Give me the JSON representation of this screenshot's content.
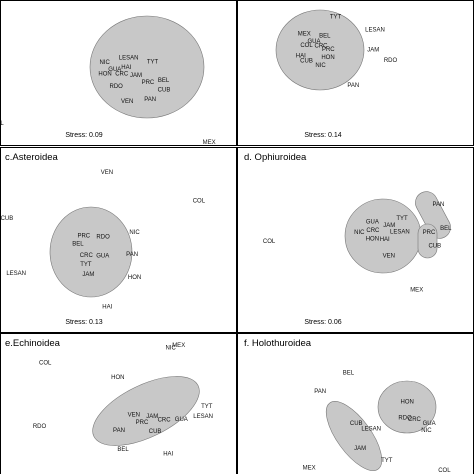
{
  "colors": {
    "group_fill": "#c8c8c8",
    "group_stroke": "#777777",
    "frame": "#000000",
    "text": "#111111"
  },
  "chart_data": [
    {
      "type": "scatter",
      "title": "",
      "stress_label": "Stress: 0.09",
      "points": [
        {
          "label": "NIC",
          "x": -0.42,
          "y": 0.82
        },
        {
          "label": "LESAN",
          "x": 0.1,
          "y": 0.91
        },
        {
          "label": "TYT",
          "x": 0.62,
          "y": 0.83
        },
        {
          "label": "HAI",
          "x": 0.05,
          "y": 0.71
        },
        {
          "label": "GUA",
          "x": -0.2,
          "y": 0.66
        },
        {
          "label": "HON",
          "x": -0.41,
          "y": 0.57
        },
        {
          "label": "CRC",
          "x": -0.05,
          "y": 0.57
        },
        {
          "label": "JAM",
          "x": 0.26,
          "y": 0.53
        },
        {
          "label": "PRC",
          "x": 0.52,
          "y": 0.38
        },
        {
          "label": "BEL",
          "x": 0.86,
          "y": 0.43
        },
        {
          "label": "RDO",
          "x": -0.17,
          "y": 0.3
        },
        {
          "label": "CUB",
          "x": 0.87,
          "y": 0.22
        },
        {
          "label": "PAN",
          "x": 0.57,
          "y": 0.01
        },
        {
          "label": "VEN",
          "x": 0.07,
          "y": -0.03
        },
        {
          "label": "COL",
          "x": -2.75,
          "y": -0.51
        },
        {
          "label": "MEX",
          "x": 1.85,
          "y": -0.92
        }
      ]
    },
    {
      "type": "scatter",
      "title": "",
      "stress_label": "Stress: 0.14",
      "points": [
        {
          "label": "TYT",
          "x": 0.78,
          "y": 1.72
        },
        {
          "label": "LESAN",
          "x": 2.36,
          "y": 1.2
        },
        {
          "label": "MEX",
          "x": -0.47,
          "y": 1.05
        },
        {
          "label": "BEL",
          "x": 0.35,
          "y": 0.97
        },
        {
          "label": "GUA",
          "x": -0.08,
          "y": 0.74
        },
        {
          "label": "COL",
          "x": -0.38,
          "y": 0.58
        },
        {
          "label": "CRC",
          "x": 0.2,
          "y": 0.56
        },
        {
          "label": "PRC",
          "x": 0.49,
          "y": 0.43
        },
        {
          "label": "JAM",
          "x": 2.29,
          "y": 0.41
        },
        {
          "label": "HAI",
          "x": -0.61,
          "y": 0.16
        },
        {
          "label": "HON",
          "x": 0.48,
          "y": 0.1
        },
        {
          "label": "CUB",
          "x": -0.38,
          "y": -0.03
        },
        {
          "label": "RDO",
          "x": 2.98,
          "y": -0.01
        },
        {
          "label": "NIC",
          "x": 0.18,
          "y": -0.22
        },
        {
          "label": "PAN",
          "x": 1.49,
          "y": -1.01
        }
      ]
    },
    {
      "type": "scatter",
      "title": "c.Asteroidea",
      "stress_label": "Stress: 0.13",
      "points": [
        {
          "label": "VEN",
          "x": 0.45,
          "y": 2.02
        },
        {
          "label": "COL",
          "x": 2.64,
          "y": 1.33
        },
        {
          "label": "CUB",
          "x": -1.93,
          "y": 0.92
        },
        {
          "label": "PRC",
          "x": -0.1,
          "y": 0.5
        },
        {
          "label": "RDO",
          "x": 0.36,
          "y": 0.48
        },
        {
          "label": "NIC",
          "x": 1.11,
          "y": 0.58
        },
        {
          "label": "BEL",
          "x": -0.24,
          "y": 0.31
        },
        {
          "label": "CRC",
          "x": -0.04,
          "y": 0.04
        },
        {
          "label": "GUA",
          "x": 0.35,
          "y": 0.03
        },
        {
          "label": "PAN",
          "x": 1.05,
          "y": 0.06
        },
        {
          "label": "TYT",
          "x": -0.05,
          "y": -0.18
        },
        {
          "label": "JAM",
          "x": 0.01,
          "y": -0.41
        },
        {
          "label": "LESAN",
          "x": -1.71,
          "y": -0.39
        },
        {
          "label": "HON",
          "x": 1.11,
          "y": -0.48
        },
        {
          "label": "HAI",
          "x": 0.46,
          "y": -1.19
        },
        {
          "label": "MEX",
          "x": 2.16,
          "y": -2.1
        }
      ]
    },
    {
      "type": "scatter",
      "title": "d. Ophiuroidea",
      "stress_label": "Stress: 0.06",
      "points": [
        {
          "label": "PAN",
          "x": 2.45,
          "y": 0.92
        },
        {
          "label": "TYT",
          "x": 1.56,
          "y": 0.57
        },
        {
          "label": "GUA",
          "x": 0.84,
          "y": 0.49
        },
        {
          "label": "JAM",
          "x": 1.25,
          "y": 0.4
        },
        {
          "label": "BEL",
          "x": 2.63,
          "y": 0.33
        },
        {
          "label": "NIC",
          "x": 0.52,
          "y": 0.24
        },
        {
          "label": "CRC",
          "x": 0.85,
          "y": 0.28
        },
        {
          "label": "LESAN",
          "x": 1.51,
          "y": 0.25
        },
        {
          "label": "PRC",
          "x": 2.22,
          "y": 0.23
        },
        {
          "label": "HON",
          "x": 0.84,
          "y": 0.07
        },
        {
          "label": "HAI",
          "x": 1.14,
          "y": 0.06
        },
        {
          "label": "COL",
          "x": -1.68,
          "y": 0.02
        },
        {
          "label": "CUB",
          "x": 2.36,
          "y": -0.09
        },
        {
          "label": "VEN",
          "x": 1.24,
          "y": -0.34
        },
        {
          "label": "MEX",
          "x": 1.92,
          "y": -1.17
        }
      ]
    },
    {
      "type": "scatter",
      "title": "e.Echinoidea",
      "stress_label": "",
      "points": [
        {
          "label": "NIC",
          "x": 1.09,
          "y": 1.49
        },
        {
          "label": "COL",
          "x": -1.97,
          "y": 1.13
        },
        {
          "label": "HON",
          "x": -0.2,
          "y": 0.77
        },
        {
          "label": "TYT",
          "x": 1.97,
          "y": 0.06
        },
        {
          "label": "VEN",
          "x": 0.19,
          "y": -0.15
        },
        {
          "label": "JAM",
          "x": 0.64,
          "y": -0.18
        },
        {
          "label": "GUA",
          "x": 1.35,
          "y": -0.25
        },
        {
          "label": "LESAN",
          "x": 1.88,
          "y": -0.18
        },
        {
          "label": "RDO",
          "x": -2.11,
          "y": -0.42
        },
        {
          "label": "PRC",
          "x": 0.39,
          "y": -0.33
        },
        {
          "label": "CRC",
          "x": 0.93,
          "y": -0.26
        },
        {
          "label": "PAN",
          "x": -0.17,
          "y": -0.52
        },
        {
          "label": "CUB",
          "x": 0.71,
          "y": -0.55
        },
        {
          "label": "BEL",
          "x": -0.07,
          "y": -0.99
        },
        {
          "label": "HAI",
          "x": 1.03,
          "y": -1.1
        }
      ]
    },
    {
      "type": "scatter",
      "title": "f. Holothuroidea",
      "stress_label": "",
      "points": [
        {
          "label": "BEL",
          "x": -0.02,
          "y": 1.91
        },
        {
          "label": "PAN",
          "x": -0.96,
          "y": 1.29
        },
        {
          "label": "HON",
          "x": 1.94,
          "y": 0.94
        },
        {
          "label": "RDO",
          "x": 1.87,
          "y": 0.41
        },
        {
          "label": "CRC",
          "x": 2.18,
          "y": 0.35
        },
        {
          "label": "CUB",
          "x": 0.24,
          "y": 0.22
        },
        {
          "label": "LESAN",
          "x": 0.74,
          "y": 0.03
        },
        {
          "label": "GUA",
          "x": 2.67,
          "y": 0.22
        },
        {
          "label": "NIC",
          "x": 2.58,
          "y": -0.02
        },
        {
          "label": "JAM",
          "x": 0.37,
          "y": -0.62
        },
        {
          "label": "TYT",
          "x": 1.26,
          "y": -1.01
        },
        {
          "label": "MEX",
          "x": -1.33,
          "y": -1.26
        },
        {
          "label": "PRC",
          "x": -0.14,
          "y": -1.63
        },
        {
          "label": "COL",
          "x": 3.18,
          "y": -1.34
        }
      ]
    }
  ]
}
